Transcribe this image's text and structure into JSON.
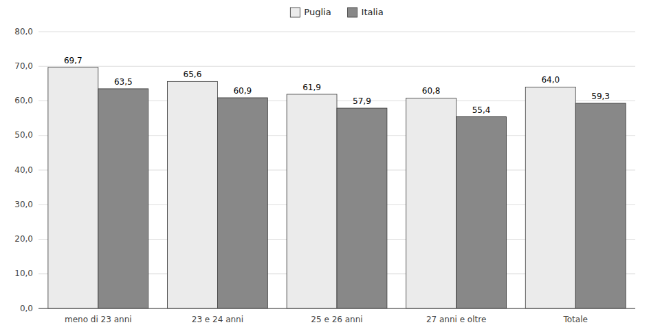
{
  "chart_data": {
    "type": "bar",
    "categories": [
      "meno di 23 anni",
      "23 e 24 anni",
      "25 e 26 anni",
      "27 anni e oltre",
      "Totale"
    ],
    "series": [
      {
        "name": "Puglia",
        "color": "#ebebeb",
        "values": [
          69.7,
          65.6,
          61.9,
          60.8,
          64.0
        ],
        "value_labels": [
          "69,7",
          "65,6",
          "61,9",
          "60,8",
          "64,0"
        ]
      },
      {
        "name": "Italia",
        "color": "#888888",
        "values": [
          63.5,
          60.9,
          57.9,
          55.4,
          59.3
        ],
        "value_labels": [
          "63,5",
          "60,9",
          "57,9",
          "55,4",
          "59,3"
        ]
      }
    ],
    "ylim": [
      0,
      80
    ],
    "yticks": [
      {
        "value": 0,
        "label": "0,0"
      },
      {
        "value": 10,
        "label": "10,0"
      },
      {
        "value": 20,
        "label": "20,0"
      },
      {
        "value": 30,
        "label": "30,0"
      },
      {
        "value": 40,
        "label": "40,0"
      },
      {
        "value": 50,
        "label": "50,0"
      },
      {
        "value": 60,
        "label": "60,0"
      },
      {
        "value": 70,
        "label": "70,0"
      },
      {
        "value": 80,
        "label": "80,0"
      }
    ],
    "grid": true,
    "legend": "top",
    "data_labels": true
  }
}
